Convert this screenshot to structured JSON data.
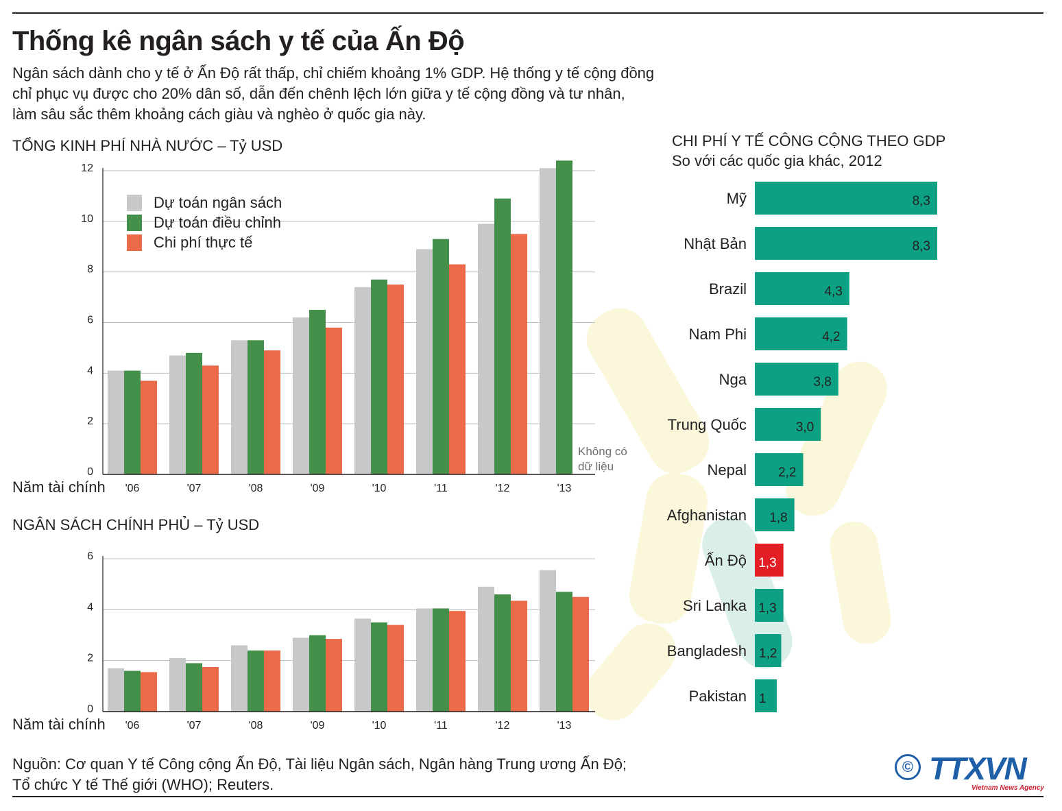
{
  "title": "Thống kê ngân sách y tế của Ấn Độ",
  "intro": [
    "Ngân sách dành cho y tế ở Ấn Độ rất thấp, chỉ chiếm khoảng 1% GDP. Hệ thống y tế cộng đồng",
    "chỉ phục vụ được cho 20% dân số, dẫn đến chênh lệch lớn giữa y tế cộng đồng và tư nhân,",
    "làm sâu sắc thêm khoảng cách giàu và nghèo ở quốc gia này."
  ],
  "colors": {
    "gray": "#c7c8ca",
    "green": "#44904a",
    "orange": "#ea6a4a",
    "teal": "#0da184",
    "red": "#e31e25",
    "axis": "#231f20",
    "grid": "#bcbec0"
  },
  "chart_data": [
    {
      "id": "chart1",
      "type": "bar",
      "title": "TỔNG KINH PHÍ NHÀ NƯỚC – Tỷ USD",
      "xlabel": "Năm tài chính",
      "categories": [
        "'06",
        "'07",
        "'08",
        "'09",
        "'10",
        "'11",
        "'12",
        "'13"
      ],
      "yticks": [
        0,
        2,
        4,
        6,
        8,
        10,
        12
      ],
      "ylim": [
        0,
        12
      ],
      "legend": [
        "Dự toán ngân sách",
        "Dự toán điều chỉnh",
        "Chi phí thực tế"
      ],
      "series": [
        {
          "name": "Dự toán ngân sách",
          "color": "#c7c8ca",
          "values": [
            4.1,
            4.7,
            5.3,
            6.2,
            7.4,
            8.9,
            9.9,
            12.1
          ]
        },
        {
          "name": "Dự toán điều chỉnh",
          "color": "#44904a",
          "values": [
            4.1,
            4.8,
            5.3,
            6.5,
            7.7,
            9.3,
            10.9,
            12.4
          ]
        },
        {
          "name": "Chi phí thực tế",
          "color": "#ea6a4a",
          "values": [
            3.7,
            4.3,
            4.9,
            5.8,
            7.5,
            8.3,
            9.5,
            null
          ]
        }
      ],
      "annotation": "Không có dữ liệu"
    },
    {
      "id": "chart2",
      "type": "bar",
      "title": "NGÂN SÁCH CHÍNH PHỦ – Tỷ USD",
      "xlabel": "Năm tài chính",
      "categories": [
        "'06",
        "'07",
        "'08",
        "'09",
        "'10",
        "'11",
        "'12",
        "'13"
      ],
      "yticks": [
        0,
        2,
        4,
        6
      ],
      "ylim": [
        0,
        6
      ],
      "series": [
        {
          "name": "Dự toán ngân sách",
          "color": "#c7c8ca",
          "values": [
            1.7,
            2.1,
            2.6,
            2.9,
            3.65,
            4.05,
            4.9,
            5.55
          ]
        },
        {
          "name": "Dự toán điều chỉnh",
          "color": "#44904a",
          "values": [
            1.6,
            1.9,
            2.4,
            3.0,
            3.5,
            4.05,
            4.6,
            4.7
          ]
        },
        {
          "name": "Chi phí thực tế",
          "color": "#ea6a4a",
          "values": [
            1.55,
            1.75,
            2.4,
            2.85,
            3.4,
            3.95,
            4.35,
            4.5
          ]
        }
      ]
    },
    {
      "id": "chart3",
      "type": "bar",
      "orientation": "horizontal",
      "title": "CHI PHÍ Y TẾ CÔNG CỘNG THEO GDP",
      "subtitle": "So với các quốc gia khác, 2012",
      "categories": [
        "Mỹ",
        "Nhật Bản",
        "Brazil",
        "Nam Phi",
        "Nga",
        "Trung Quốc",
        "Nepal",
        "Afghanistan",
        "Ấn Độ",
        "Sri Lanka",
        "Bangladesh",
        "Pakistan"
      ],
      "values": [
        8.3,
        8.3,
        4.3,
        4.2,
        3.8,
        3.0,
        2.2,
        1.8,
        1.3,
        1.3,
        1.2,
        1
      ],
      "labels": [
        "8,3",
        "8,3",
        "4,3",
        "4,2",
        "3,8",
        "3,0",
        "2,2",
        "1,8",
        "1,3",
        "1,3",
        "1,2",
        "1"
      ],
      "highlight": "Ấn Độ"
    }
  ],
  "source": [
    "Nguồn: Cơ quan Y tế Công cộng Ấn Độ, Tài liệu Ngân sách, Ngân hàng Trung ương Ấn Độ;",
    "Tổ chức Y tế Thế giới (WHO); Reuters."
  ],
  "logo": {
    "copyright": "©",
    "name": "TTXVN",
    "tagline": "Vietnam News Agency"
  }
}
